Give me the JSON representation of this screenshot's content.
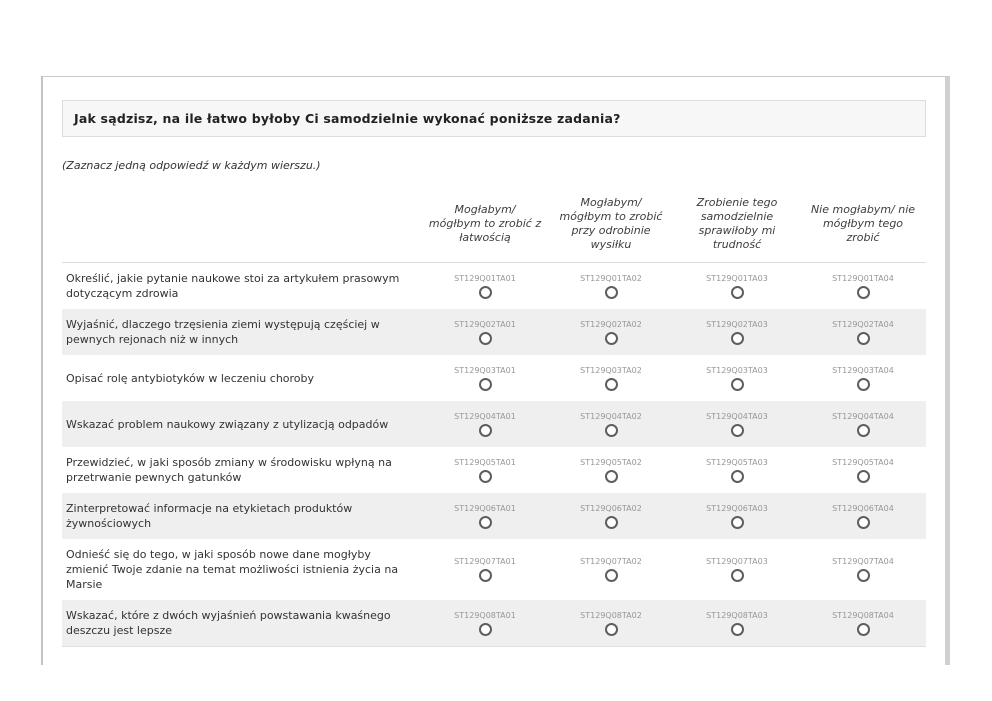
{
  "header": {
    "question": "Jak sądzisz, na ile łatwo byłoby Ci samodzielnie wykonać poniższe zadania?"
  },
  "instruction": "(Zaznacz jedną odpowiedź w każdym wierszu.)",
  "table": {
    "columns": [
      {
        "label": "Mogłabym/ mógłbym to zrobić z łatwością"
      },
      {
        "label": "Mogłabym/ mógłbym to zrobić przy odrobinie wysiłku"
      },
      {
        "label": "Zrobienie tego samodzielnie sprawiłoby mi trudność"
      },
      {
        "label": "Nie mogłabym/ nie mógłbym tego zrobić"
      }
    ],
    "rows": [
      {
        "statement": "Określić, jakie pytanie naukowe stoi za artykułem prasowym dotyczącym zdrowia",
        "codes": [
          "ST129Q01TA01",
          "ST129Q01TA02",
          "ST129Q01TA03",
          "ST129Q01TA04"
        ]
      },
      {
        "statement": "Wyjaśnić, dlaczego trzęsienia ziemi występują częściej w pewnych rejonach niż w innych",
        "codes": [
          "ST129Q02TA01",
          "ST129Q02TA02",
          "ST129Q02TA03",
          "ST129Q02TA04"
        ]
      },
      {
        "statement": "Opisać rolę antybiotyków w leczeniu choroby",
        "codes": [
          "ST129Q03TA01",
          "ST129Q03TA02",
          "ST129Q03TA03",
          "ST129Q03TA04"
        ]
      },
      {
        "statement": "Wskazać problem naukowy związany z utylizacją odpadów",
        "codes": [
          "ST129Q04TA01",
          "ST129Q04TA02",
          "ST129Q04TA03",
          "ST129Q04TA04"
        ]
      },
      {
        "statement": "Przewidzieć, w jaki sposób zmiany w środowisku wpłyną na przetrwanie pewnych gatunków",
        "codes": [
          "ST129Q05TA01",
          "ST129Q05TA02",
          "ST129Q05TA03",
          "ST129Q05TA04"
        ]
      },
      {
        "statement": "Zinterpretować informacje na etykietach produktów żywnościowych",
        "codes": [
          "ST129Q06TA01",
          "ST129Q06TA02",
          "ST129Q06TA03",
          "ST129Q06TA04"
        ]
      },
      {
        "statement": "Odnieść się do tego, w jaki sposób nowe dane mogłyby zmienić Twoje zdanie na temat możliwości istnienia życia na Marsie",
        "codes": [
          "ST129Q07TA01",
          "ST129Q07TA02",
          "ST129Q07TA03",
          "ST129Q07TA04"
        ]
      },
      {
        "statement": "Wskazać, które z dwóch wyjaśnień powstawania kwaśnego deszczu jest lepsze",
        "codes": [
          "ST129Q08TA01",
          "ST129Q08TA02",
          "ST129Q08TA03",
          "ST129Q08TA04"
        ]
      }
    ]
  },
  "colors": {
    "row_stripe": "#efefef",
    "header_box_bg": "#f7f7f7",
    "panel_border": "#c9c9c9",
    "code_text": "#979797",
    "radio_border": "#5e5e5e"
  }
}
